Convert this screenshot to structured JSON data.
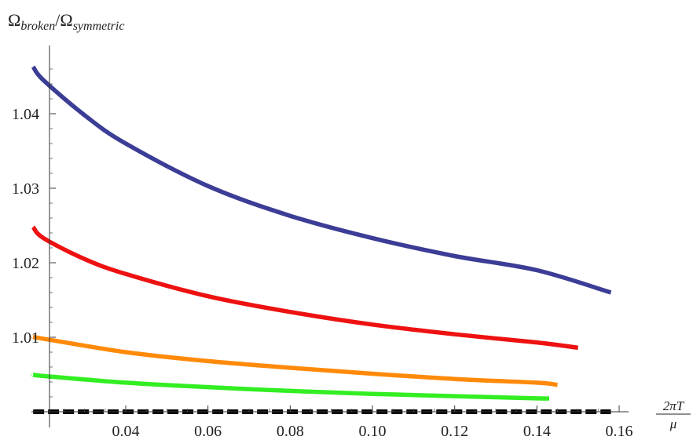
{
  "chart_data": {
    "type": "line",
    "ylabel": "Ω_broken/Ω_symmetric",
    "ylabel_parts": {
      "base1": "Ω",
      "sub1": "broken",
      "slash": "/",
      "base2": "Ω",
      "sub2": "symmetric"
    },
    "xlabel": "2πT/μ",
    "xlabel_parts": {
      "numerator": "2πT",
      "denominator": "μ"
    },
    "xlim": [
      0.0155,
      0.165
    ],
    "ylim": [
      1.0,
      1.047
    ],
    "x_ticks": [
      0.04,
      0.06,
      0.08,
      0.1,
      0.12,
      0.14,
      0.16
    ],
    "x_tick_labels": [
      "0.04",
      "0.06",
      "0.08",
      "0.10",
      "0.12",
      "0.14",
      "0.16"
    ],
    "y_ticks": [
      1.01,
      1.02,
      1.03,
      1.04
    ],
    "y_tick_labels": [
      "1.01",
      "1.02",
      "1.03",
      "1.04"
    ],
    "grid": false,
    "series": [
      {
        "color": "#3b3d96",
        "style": "solid",
        "x": [
          0.0175,
          0.02,
          0.03,
          0.04,
          0.06,
          0.08,
          0.1,
          0.12,
          0.14,
          0.158
        ],
        "y": [
          1.0463,
          1.0445,
          1.0398,
          1.036,
          1.0303,
          1.0263,
          1.0233,
          1.0209,
          1.019,
          1.016
        ]
      },
      {
        "color": "#ee1111",
        "style": "solid",
        "x": [
          0.0175,
          0.02,
          0.03,
          0.04,
          0.06,
          0.08,
          0.1,
          0.12,
          0.14,
          0.15
        ],
        "y": [
          1.0248,
          1.0233,
          1.0205,
          1.0185,
          1.0155,
          1.0134,
          1.0117,
          1.0104,
          1.0093,
          1.0086
        ]
      },
      {
        "color": "#ff8a0a",
        "style": "solid",
        "x": [
          0.0175,
          0.02,
          0.04,
          0.06,
          0.08,
          0.1,
          0.12,
          0.14,
          0.145
        ],
        "y": [
          1.0101,
          1.0098,
          1.008,
          1.0068,
          1.0059,
          1.0051,
          1.0044,
          1.0039,
          1.0036
        ]
      },
      {
        "color": "#33ee22",
        "style": "solid",
        "x": [
          0.0175,
          0.02,
          0.04,
          0.06,
          0.08,
          0.1,
          0.12,
          0.14,
          0.143
        ],
        "y": [
          1.005,
          1.0048,
          1.0039,
          1.0033,
          1.0028,
          1.0024,
          1.0021,
          1.0018,
          1.0018
        ]
      },
      {
        "color": "#000000",
        "style": "dashed",
        "x": [
          0.0175,
          0.158
        ],
        "y": [
          1.0,
          1.0
        ]
      }
    ]
  }
}
